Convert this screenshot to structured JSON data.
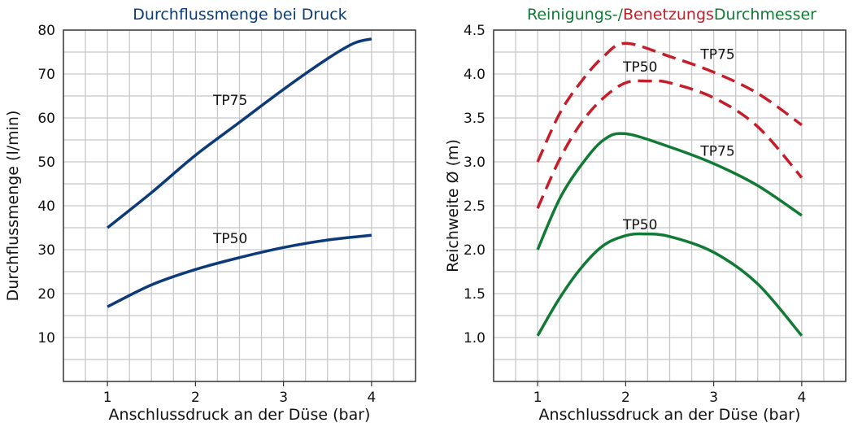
{
  "colors": {
    "blue": "#0d3a78",
    "red": "#c41e2a",
    "green": "#117a35",
    "grid": "#c8c8c8",
    "frame": "#333333"
  },
  "chart_data": [
    {
      "type": "line",
      "title_parts": [
        {
          "text": "Durchflussmenge bei Druck",
          "color": "#0d3a78"
        }
      ],
      "xlabel": "Anschlussdruck an der Düse (bar)",
      "ylabel": "Durchflussmenge (l/min)",
      "xlim": [
        0.5,
        4.5
      ],
      "ylim": [
        0,
        80
      ],
      "xticks": [
        1,
        2,
        3,
        4
      ],
      "yticks": [
        10,
        20,
        30,
        40,
        50,
        60,
        70,
        80
      ],
      "grid": true,
      "series": [
        {
          "name": "TP75",
          "color": "#0d3a78",
          "dash": false,
          "label_at": [
            2.2,
            63
          ],
          "x": [
            1.0,
            1.5,
            2.0,
            2.5,
            3.0,
            3.5,
            3.8,
            4.0
          ],
          "y": [
            35,
            43,
            51.5,
            59,
            66.5,
            73.5,
            77,
            78
          ]
        },
        {
          "name": "TP50",
          "color": "#0d3a78",
          "dash": false,
          "label_at": [
            2.2,
            31.5
          ],
          "x": [
            1.0,
            1.5,
            2.0,
            2.5,
            3.0,
            3.5,
            4.0
          ],
          "y": [
            17,
            22,
            25.5,
            28.2,
            30.5,
            32.2,
            33.3
          ]
        }
      ]
    },
    {
      "type": "line",
      "title_parts": [
        {
          "text": "Reinigungs-/",
          "color": "#117a35"
        },
        {
          "text": "Benetzungs",
          "color": "#c41e2a"
        },
        {
          "text": "Durchmesser",
          "color": "#117a35"
        }
      ],
      "xlabel": "Anschlussdruck an der Düse (bar)",
      "ylabel": "Reichweite Ø (m)",
      "xlim": [
        0.5,
        4.5
      ],
      "ylim": [
        0.5,
        4.5
      ],
      "xticks": [
        1,
        2,
        3,
        4
      ],
      "yticks": [
        1.0,
        1.5,
        2.0,
        2.5,
        3.0,
        3.5,
        4.0,
        4.5
      ],
      "grid": true,
      "series": [
        {
          "name": "TP75",
          "color": "#c41e2a",
          "dash": true,
          "label_at": [
            2.85,
            4.17
          ],
          "x": [
            1.0,
            1.25,
            1.5,
            1.75,
            2.0,
            2.5,
            3.0,
            3.5,
            4.0
          ],
          "y": [
            3.0,
            3.55,
            3.92,
            4.2,
            4.35,
            4.2,
            4.02,
            3.78,
            3.42
          ]
        },
        {
          "name": "TP50",
          "color": "#c41e2a",
          "dash": true,
          "label_at": [
            1.97,
            4.03
          ],
          "x": [
            1.0,
            1.25,
            1.5,
            1.75,
            2.0,
            2.25,
            2.5,
            3.0,
            3.5,
            4.0
          ],
          "y": [
            2.47,
            3.03,
            3.45,
            3.73,
            3.9,
            3.92,
            3.9,
            3.73,
            3.4,
            2.82
          ]
        },
        {
          "name": "TP75",
          "color": "#117a35",
          "dash": false,
          "label_at": [
            2.85,
            3.07
          ],
          "x": [
            1.0,
            1.25,
            1.5,
            1.75,
            2.0,
            2.5,
            3.0,
            3.5,
            4.0
          ],
          "y": [
            2.0,
            2.58,
            2.97,
            3.25,
            3.32,
            3.17,
            2.98,
            2.73,
            2.39
          ]
        },
        {
          "name": "TP50",
          "color": "#117a35",
          "dash": false,
          "label_at": [
            1.97,
            2.23
          ],
          "x": [
            1.0,
            1.25,
            1.5,
            1.75,
            2.0,
            2.2,
            2.5,
            3.0,
            3.5,
            4.0
          ],
          "y": [
            1.02,
            1.45,
            1.8,
            2.05,
            2.16,
            2.18,
            2.15,
            1.97,
            1.61,
            1.02
          ]
        }
      ]
    }
  ]
}
